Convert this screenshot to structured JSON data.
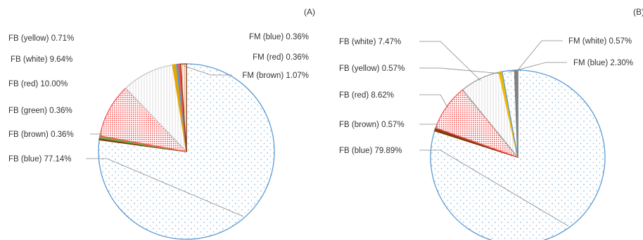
{
  "chart_data": [
    {
      "type": "pie",
      "panel_label": "(A)",
      "slices": [
        {
          "label": "FB (blue) 77.14%",
          "value": 77.14,
          "color": "#5b9bd5",
          "pattern": "dots"
        },
        {
          "label": "FB (brown) 0.36%",
          "value": 0.36,
          "color": "#843c0c",
          "pattern": "none"
        },
        {
          "label": "FB (green) 0.36%",
          "value": 0.36,
          "color": "#70ad47",
          "pattern": "none"
        },
        {
          "label": "FB (red) 10.00%",
          "value": 10.0,
          "color": "#ff5050",
          "pattern": "dense-dots"
        },
        {
          "label": "FB (white) 9.64%",
          "value": 9.64,
          "color": "#c8c8c8",
          "pattern": "vlines"
        },
        {
          "label": "FB (yellow) 0.71%",
          "value": 0.71,
          "color": "#e6a800",
          "pattern": "none"
        },
        {
          "label": "FM (blue) 0.36%",
          "value": 0.36,
          "color": "#5b9bd5",
          "pattern": "none"
        },
        {
          "label": "FM (red) 0.36%",
          "value": 0.36,
          "color": "#ff5050",
          "pattern": "none"
        },
        {
          "label": "FM (brown) 1.07%",
          "value": 1.07,
          "color": "#843c0c",
          "pattern": "hatch"
        }
      ]
    },
    {
      "type": "pie",
      "panel_label": "(B)",
      "slices": [
        {
          "label": "FB (blue) 79.89%",
          "value": 79.89,
          "color": "#5b9bd5",
          "pattern": "dots"
        },
        {
          "label": "FB (brown) 0.57%",
          "value": 0.57,
          "color": "#843c0c",
          "pattern": "none"
        },
        {
          "label": "FB (red) 8.62%",
          "value": 8.62,
          "color": "#ff5050",
          "pattern": "dense-dots"
        },
        {
          "label": "FB (white) 7.47%",
          "value": 7.47,
          "color": "#999999",
          "pattern": "vlines"
        },
        {
          "label": "FB (yellow) 0.57%",
          "value": 0.57,
          "color": "#f2b800",
          "pattern": "none"
        },
        {
          "label": "FM (blue) 2.30%",
          "value": 2.3,
          "color": "#5b9bd5",
          "pattern": "dots"
        },
        {
          "label": "FM (white) 0.57%",
          "value": 0.57,
          "color": "#808080",
          "pattern": "none"
        }
      ]
    }
  ]
}
